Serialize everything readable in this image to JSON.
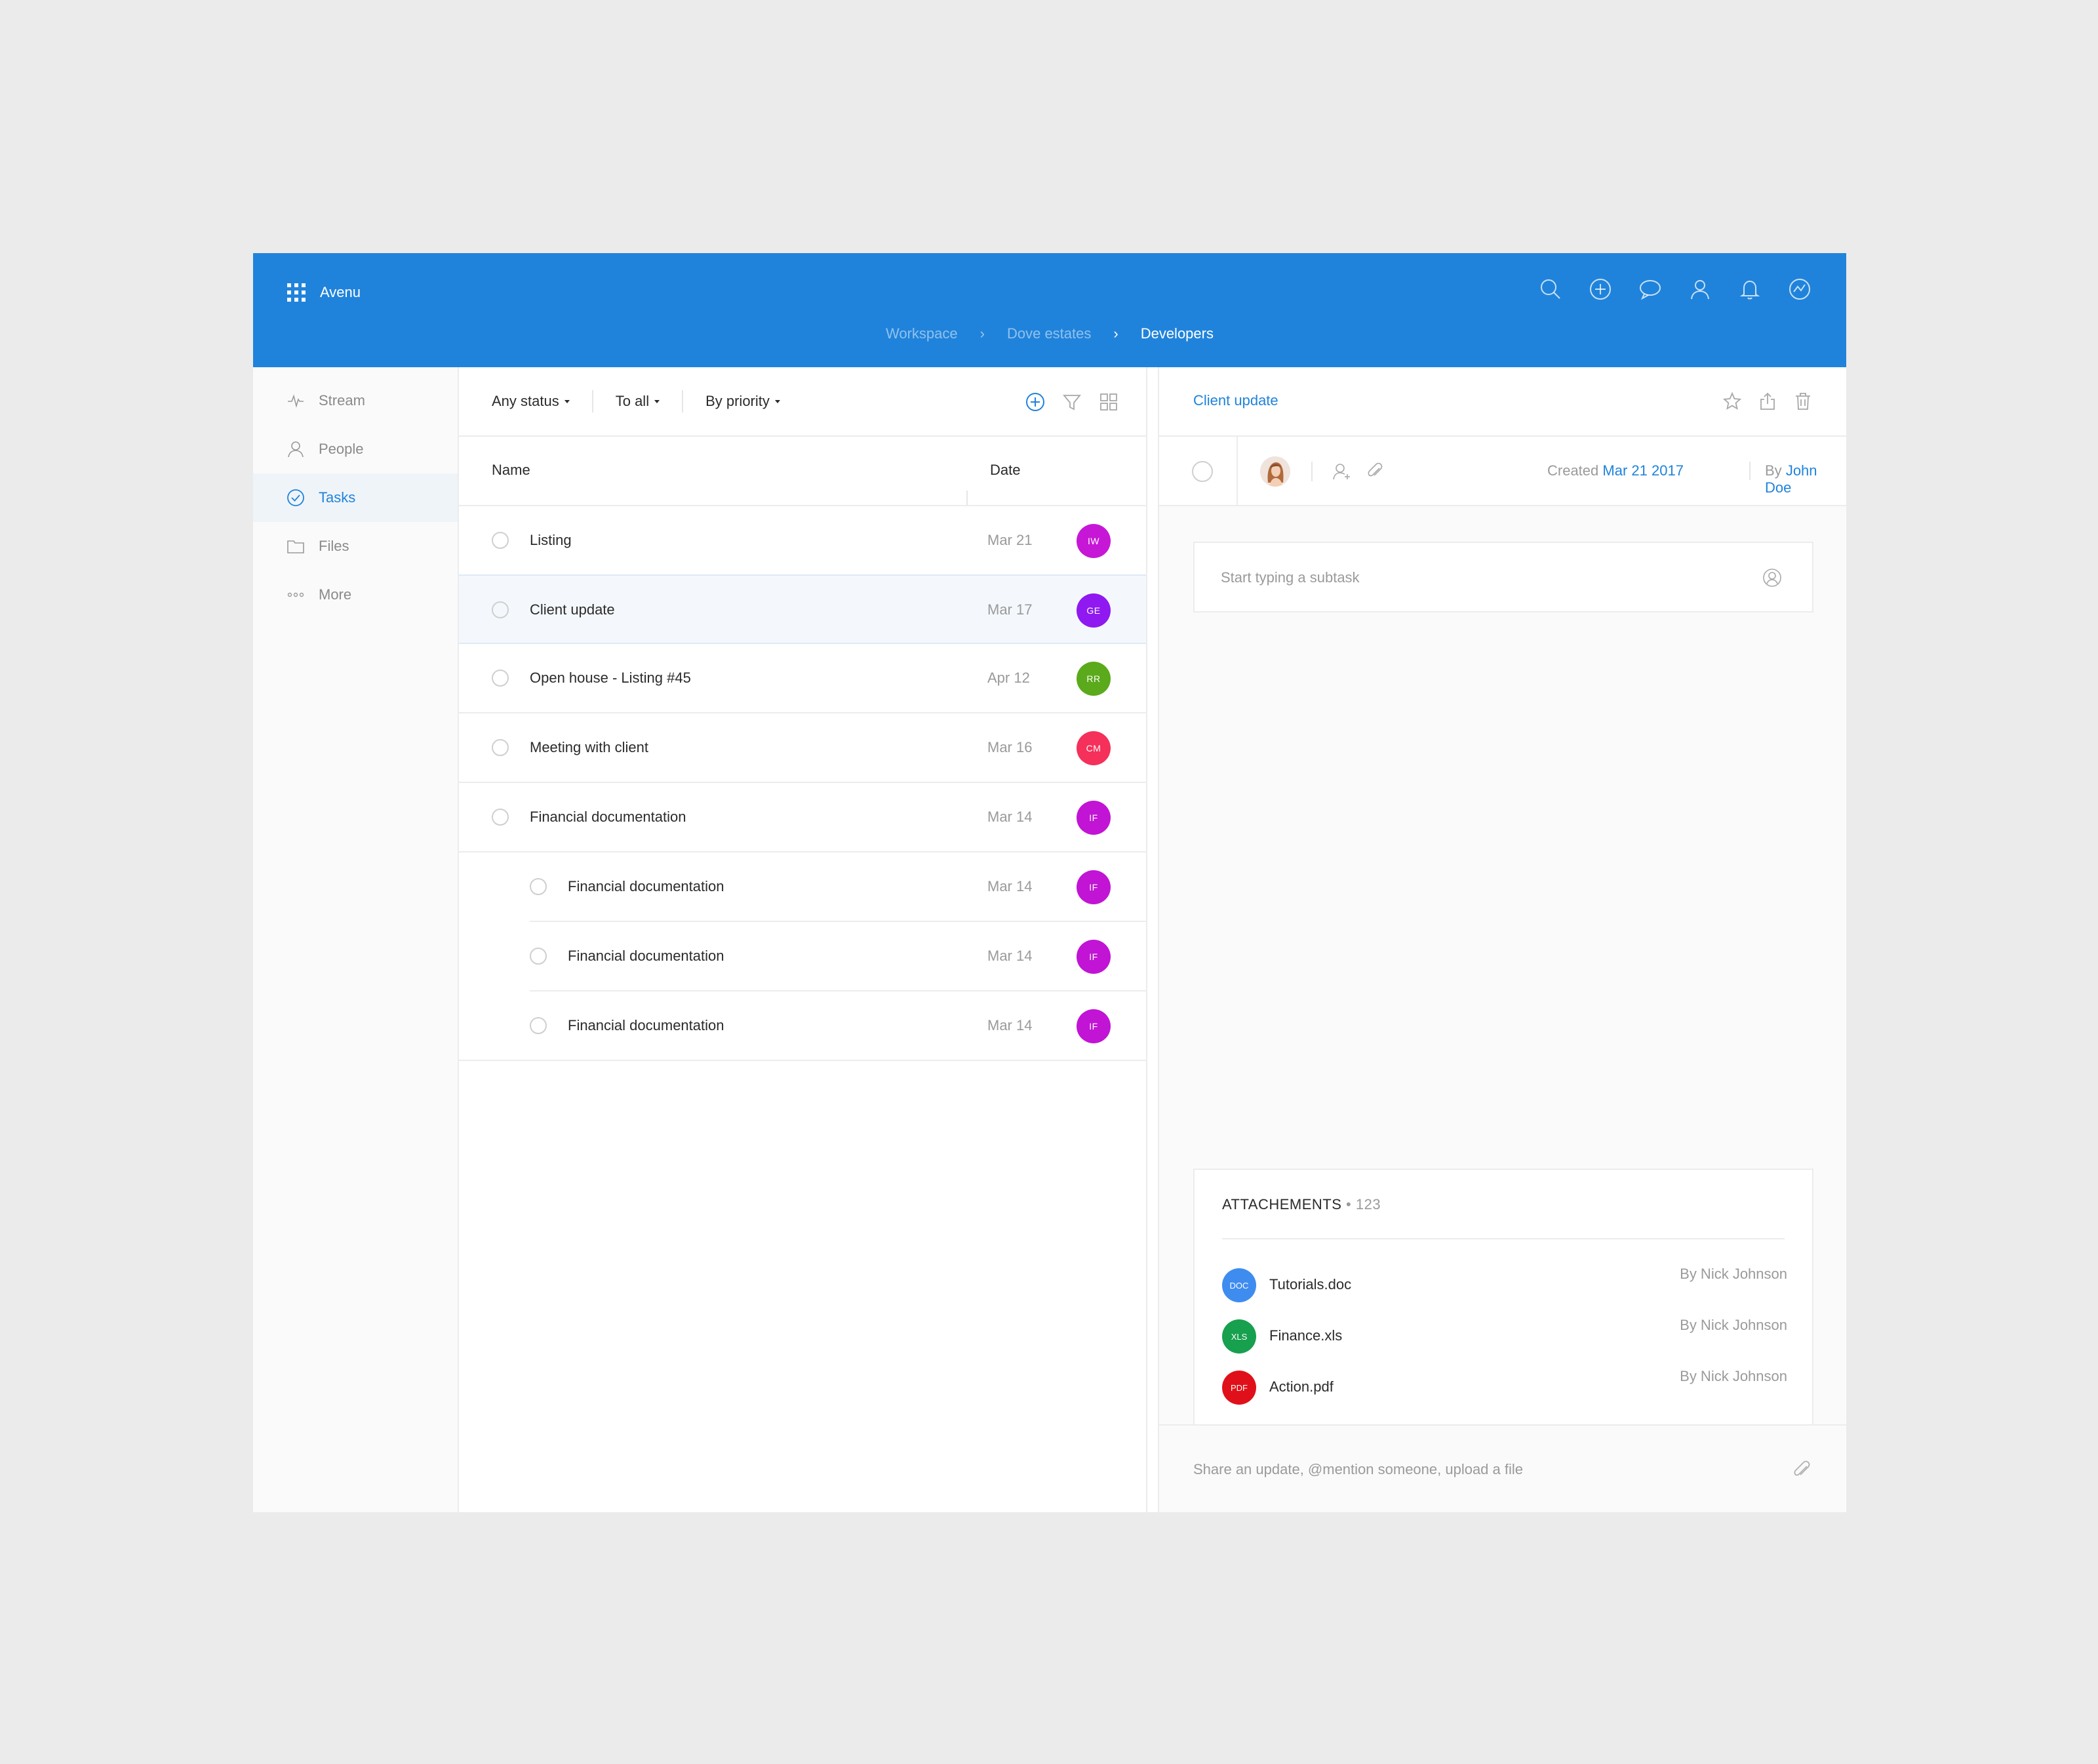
{
  "app": {
    "name": "Avenu"
  },
  "header": {
    "icons": [
      "search-icon",
      "add-icon",
      "chat-icon",
      "user-icon",
      "bell-icon",
      "activity-icon"
    ],
    "breadcrumb": [
      "Workspace",
      "Dove estates",
      "Developers"
    ]
  },
  "sidebar": {
    "items": [
      {
        "label": "Stream",
        "icon": "pulse-icon"
      },
      {
        "label": "People",
        "icon": "person-icon"
      },
      {
        "label": "Tasks",
        "icon": "check-circle-icon",
        "active": true
      },
      {
        "label": "Files",
        "icon": "folder-icon"
      },
      {
        "label": "More",
        "icon": "more-dots-icon"
      }
    ]
  },
  "filters": {
    "status": "Any status",
    "assignee": "To all",
    "sort": "By priority"
  },
  "columns": {
    "name": "Name",
    "date": "Date"
  },
  "tasks": [
    {
      "name": "Listing",
      "date": "Mar 21",
      "initials": "IW",
      "color": "#c617d6"
    },
    {
      "name": "Client update",
      "date": "Mar 17",
      "initials": "GE",
      "color": "#8f19f0",
      "selected": true
    },
    {
      "name": "Open house - Listing #45",
      "date": "Apr 12",
      "initials": "RR",
      "color": "#5aaa1b"
    },
    {
      "name": "Meeting with client",
      "date": "Mar 16",
      "initials": "CM",
      "color": "#f5305a"
    },
    {
      "name": "Financial documentation",
      "date": "Mar 14",
      "initials": "IF",
      "color": "#c114d4"
    },
    {
      "name": "Financial documentation",
      "date": "Mar 14",
      "initials": "IF",
      "color": "#c114d4",
      "subtask": true
    },
    {
      "name": "Financial documentation",
      "date": "Mar 14",
      "initials": "IF",
      "color": "#c114d4",
      "subtask": true
    },
    {
      "name": "Financial documentation",
      "date": "Mar 14",
      "initials": "IF",
      "color": "#c114d4",
      "subtask": true
    }
  ],
  "detail": {
    "title": "Client update",
    "created_label": "Created",
    "created_date": "Mar 21 2017",
    "by_label": "By",
    "by_name": "John Doe",
    "subtask_placeholder": "Start typing a subtask",
    "attachments": {
      "title": "ATTACHEMENTS",
      "count": "• 123",
      "files": [
        {
          "type": "DOC",
          "name": "Tutorials.doc",
          "by": "By Nick Johnson",
          "color": "#3f8cf0"
        },
        {
          "type": "XLS",
          "name": "Finance.xls",
          "by": "By Nick Johnson",
          "color": "#17a04e"
        },
        {
          "type": "PDF",
          "name": "Action.pdf",
          "by": "By Nick Johnson",
          "color": "#e0101a"
        }
      ]
    },
    "composer_placeholder": "Share an update, @mention someone, upload a file"
  }
}
